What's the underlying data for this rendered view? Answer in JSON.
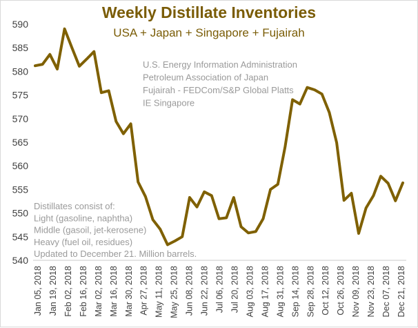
{
  "chart_data": {
    "type": "line",
    "title": "Weekly Distillate Inventories",
    "subtitle": "USA + Japan + Singapore + Fujairah",
    "xlabel": "",
    "ylabel": "",
    "ylim": [
      540,
      590
    ],
    "yticks": [
      540,
      545,
      550,
      555,
      560,
      565,
      570,
      575,
      580,
      585,
      590
    ],
    "xtick_labels": [
      "Jan 05, 2018",
      "Jan 19, 2018",
      "Feb 02, 2018",
      "Feb 16, 2018",
      "Mar 02, 2018",
      "Mar 16, 2018",
      "Mar 30, 2018",
      "Apr 27, 2018",
      "May 11, 2018",
      "May 25, 2018",
      "Jun 08, 2018",
      "Jun 22, 2018",
      "Jul 06, 2018",
      "Jul 20, 2018",
      "Aug 03, 2018",
      "Aug 17, 2018",
      "Aug 31, 2018",
      "Sep 14, 2018",
      "Sep 28, 2018",
      "Oct 12, 2018",
      "Oct 26, 2018",
      "Nov 09, 2018",
      "Nov 23, 2018",
      "Dec 07, 2018",
      "Dec 21, 2018"
    ],
    "grid": false,
    "legend": "none",
    "series": [
      {
        "name": "Weekly Distillate Inventories",
        "color": "#7f6000",
        "values": [
          581.2,
          581.5,
          583.6,
          580.5,
          589.0,
          585.0,
          581.1,
          582.6,
          584.2,
          575.5,
          575.9,
          569.4,
          566.8,
          568.9,
          556.6,
          553.5,
          548.6,
          546.6,
          543.3,
          544.1,
          545.0,
          553.3,
          551.3,
          554.5,
          553.7,
          548.8,
          549.0,
          553.3,
          547.1,
          545.8,
          546.1,
          548.8,
          555.0,
          556.1,
          564.1,
          574.0,
          573.1,
          576.6,
          576.1,
          575.2,
          571.3,
          564.9,
          552.7,
          554.2,
          545.7,
          551.1,
          553.7,
          557.8,
          556.3,
          552.6,
          556.4
        ]
      }
    ]
  },
  "sources": {
    "lines": [
      "U.S. Energy Information Administration",
      "Petroleum Association of Japan",
      "Fujairah - FEDCom/S&P Global Platts",
      "IE Singapore"
    ]
  },
  "note": {
    "lines": [
      "Distillates consist of:",
      "Light (gasoline, naphtha)",
      "Middle (gasoil, jet-kerosene)",
      "Heavy (fuel oil, residues)",
      "Updated to December 21. Million barrels."
    ]
  }
}
